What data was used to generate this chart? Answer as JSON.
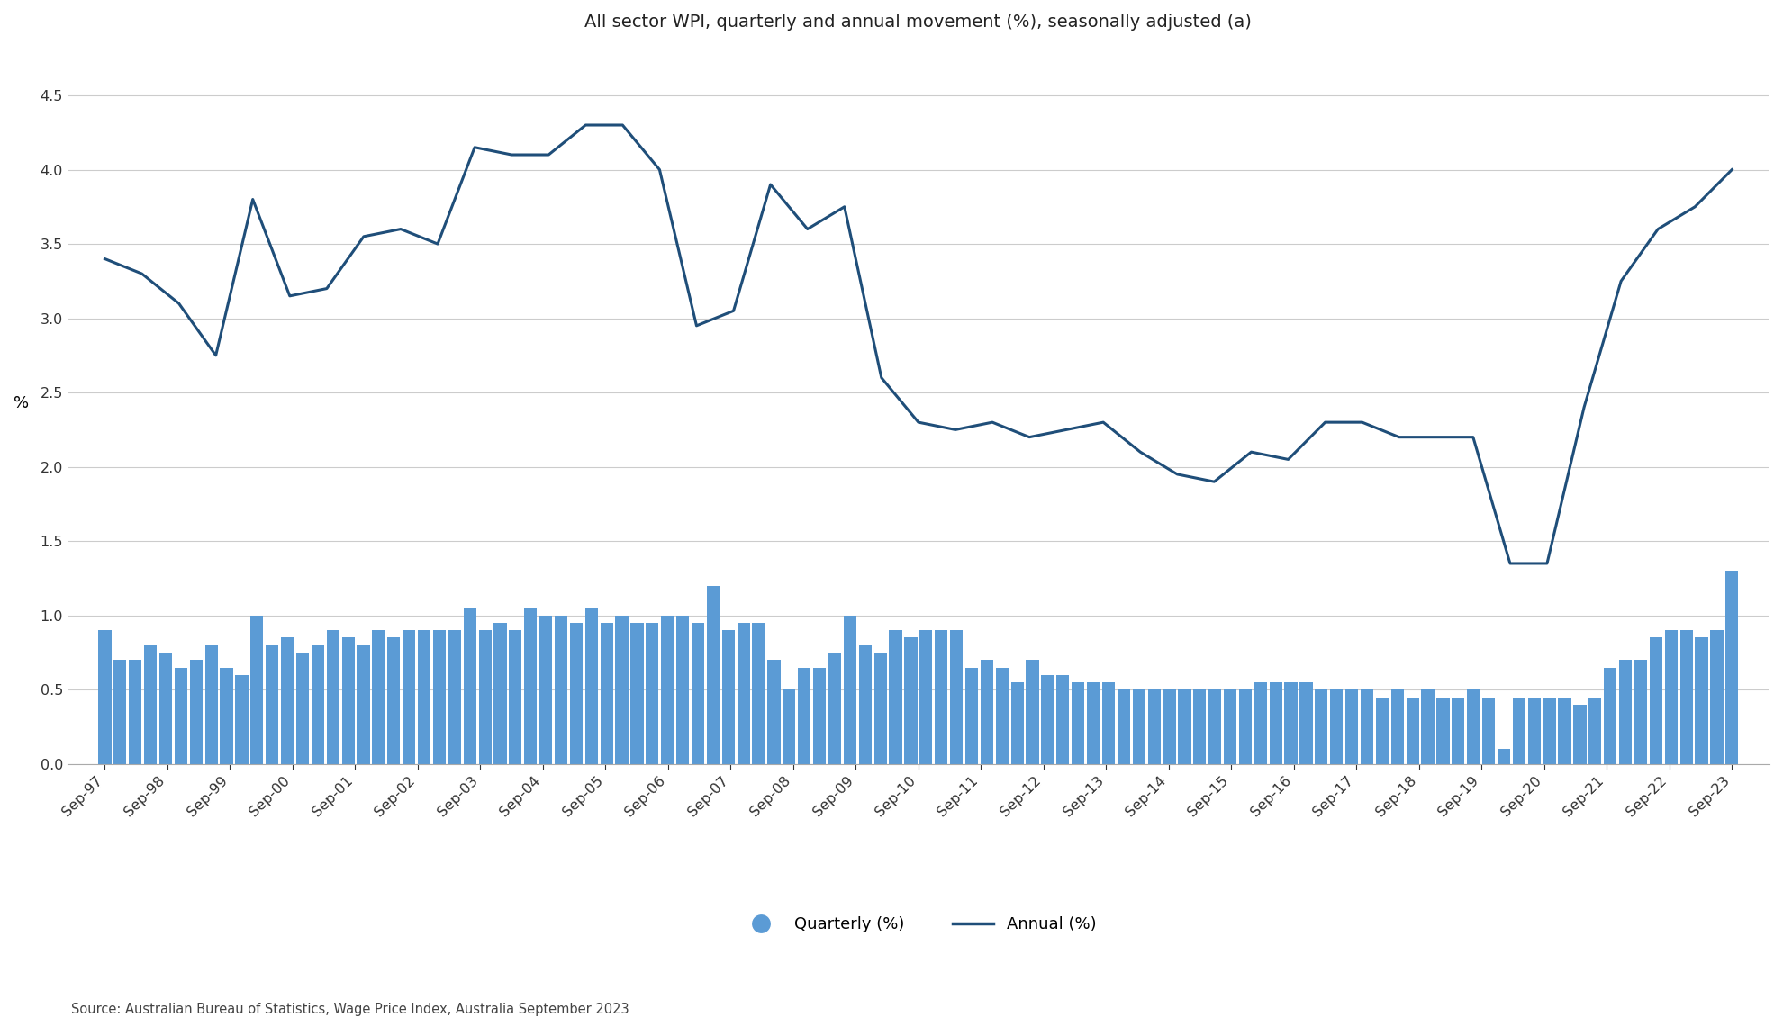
{
  "title": "All sector WPI, quarterly and annual movement (%), seasonally adjusted (a)",
  "ylabel": "%",
  "source": "Source: Australian Bureau of Statistics, Wage Price Index, Australia September 2023",
  "ylim": [
    0,
    4.75
  ],
  "yticks": [
    0,
    0.5,
    1.0,
    1.5,
    2.0,
    2.5,
    3.0,
    3.5,
    4.0,
    4.5
  ],
  "background_color": "#ffffff",
  "bar_color": "#5b9bd5",
  "line_color": "#1f4e79",
  "x_tick_labels": [
    "Sep-97",
    "Sep-98",
    "Sep-99",
    "Sep-00",
    "Sep-01",
    "Sep-02",
    "Sep-03",
    "Sep-04",
    "Sep-05",
    "Sep-06",
    "Sep-07",
    "Sep-08",
    "Sep-09",
    "Sep-10",
    "Sep-11",
    "Sep-12",
    "Sep-13",
    "Sep-14",
    "Sep-15",
    "Sep-16",
    "Sep-17",
    "Sep-18",
    "Sep-19",
    "Sep-20",
    "Sep-21",
    "Sep-22",
    "Sep-23"
  ],
  "quarterly": [
    0.9,
    0.7,
    0.7,
    0.8,
    0.75,
    0.65,
    0.7,
    0.8,
    0.65,
    0.6,
    1.0,
    0.8,
    0.85,
    0.75,
    0.8,
    0.9,
    0.85,
    0.8,
    0.9,
    0.85,
    0.9,
    0.9,
    0.9,
    0.9,
    1.05,
    0.9,
    0.95,
    0.9,
    1.05,
    1.0,
    1.0,
    0.95,
    1.05,
    0.95,
    1.0,
    0.95,
    0.95,
    1.0,
    1.0,
    0.95,
    1.2,
    0.9,
    0.95,
    0.95,
    0.7,
    0.5,
    0.65,
    0.65,
    0.75,
    1.0,
    0.8,
    0.75,
    0.9,
    0.85,
    0.9,
    0.9,
    0.9,
    0.65,
    0.7,
    0.65,
    0.55,
    0.7,
    0.6,
    0.6,
    0.55,
    0.55,
    0.55,
    0.5,
    0.5,
    0.5,
    0.5,
    0.5,
    0.5,
    0.5,
    0.5,
    0.5,
    0.55,
    0.55,
    0.55,
    0.55,
    0.5,
    0.5,
    0.5,
    0.5,
    0.45,
    0.5,
    0.45,
    0.5,
    0.45,
    0.45,
    0.5,
    0.45,
    0.1,
    0.45,
    0.45,
    0.45,
    0.45,
    0.4,
    0.45,
    0.65,
    0.7,
    0.7,
    0.85,
    0.9,
    0.9,
    0.85,
    0.9,
    1.3
  ],
  "annual": [
    3.4,
    3.3,
    3.1,
    2.75,
    3.8,
    3.15,
    3.2,
    3.55,
    3.6,
    3.5,
    4.15,
    4.1,
    4.1,
    4.3,
    4.3,
    4.0,
    2.95,
    3.05,
    3.9,
    3.6,
    3.75,
    2.6,
    2.3,
    2.25,
    2.3,
    2.2,
    2.25,
    2.3,
    2.1,
    1.95,
    1.9,
    2.1,
    2.05,
    2.3,
    2.3,
    2.2,
    2.2,
    2.2,
    1.35,
    1.35,
    2.4,
    3.25,
    3.6,
    3.75,
    4.0
  ],
  "legend_quarterly": "Quarterly (%)",
  "legend_annual": "Annual (%)"
}
